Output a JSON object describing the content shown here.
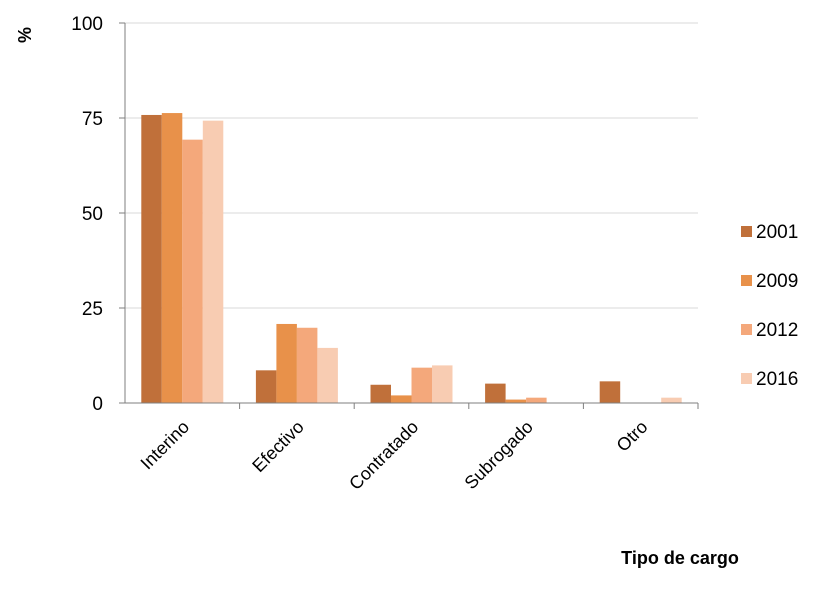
{
  "chart_data": {
    "type": "bar",
    "title": "",
    "xlabel": "Tipo de cargo",
    "ylabel": "%",
    "ylim": [
      0,
      100
    ],
    "yticks": [
      0,
      25,
      50,
      75,
      100
    ],
    "grid": true,
    "legend_position": "right",
    "categories": [
      "Interino",
      "Efectivo",
      "Contratado",
      "Subrogado",
      "Otro"
    ],
    "series": [
      {
        "name": "2001",
        "color": "#C0703A",
        "values": [
          75.8,
          8.6,
          4.8,
          5.1,
          5.7
        ]
      },
      {
        "name": "2009",
        "color": "#E8914A",
        "values": [
          76.3,
          20.8,
          2.0,
          0.9,
          0
        ]
      },
      {
        "name": "2012",
        "color": "#F4A87B",
        "values": [
          69.3,
          19.8,
          9.3,
          1.4,
          0
        ]
      },
      {
        "name": "2016",
        "color": "#F8CCB2",
        "values": [
          74.3,
          14.5,
          9.9,
          0,
          1.4
        ]
      }
    ]
  }
}
